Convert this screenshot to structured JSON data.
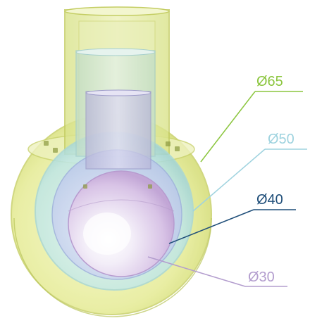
{
  "figure": {
    "callouts": [
      {
        "label": "Ø65",
        "color": "#8cc63f"
      },
      {
        "label": "Ø50",
        "color": "#9fd3df"
      },
      {
        "label": "Ø40",
        "color": "#1f4e79"
      },
      {
        "label": "Ø30",
        "color": "#b39dce"
      }
    ]
  }
}
